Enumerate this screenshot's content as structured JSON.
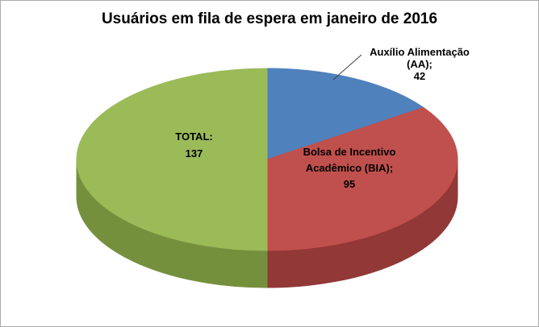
{
  "chart_data": {
    "type": "pie",
    "title": "Usuários em fila de espera em janeiro de 2016",
    "effect": "3d",
    "start_angle_deg": 0,
    "direction": "clockwise",
    "legend_position": "none",
    "slices": [
      {
        "name": "Auxílio Alimentação (AA)",
        "value": 42,
        "color": "#4F81BD",
        "side_color": "#365F91"
      },
      {
        "name": "Bolsa de Incentivo Acadêmico (BIA)",
        "value": 95,
        "color": "#C0504D",
        "side_color": "#923836"
      },
      {
        "name": "TOTAL",
        "value": 137,
        "color": "#9BBB59",
        "side_color": "#75903D"
      }
    ],
    "labels": {
      "total": {
        "lines": [
          "TOTAL:",
          "137"
        ]
      },
      "bia": {
        "lines": [
          "Bolsa de Incentivo",
          "Acadêmico (BIA);",
          "95"
        ]
      },
      "aa": {
        "lines": [
          "Auxílio Alimentação",
          "(AA);",
          "42"
        ]
      }
    }
  }
}
